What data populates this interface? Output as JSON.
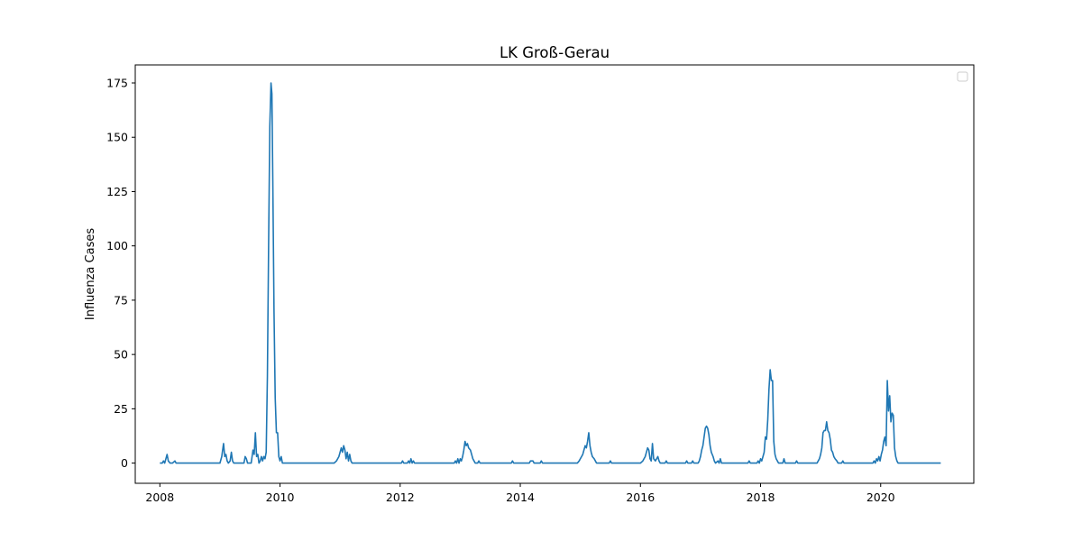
{
  "chart_data": {
    "type": "line",
    "title": "LK Groß-Gerau",
    "xlabel": "",
    "ylabel": "Influenza Cases",
    "xlim": [
      2007.59,
      2021.55
    ],
    "ylim": [
      -9.3,
      183.3
    ],
    "x_ticks": [
      2008,
      2010,
      2012,
      2014,
      2016,
      2018,
      2020
    ],
    "x_tick_labels": [
      "2008",
      "2010",
      "2012",
      "2014",
      "2016",
      "2018",
      "2020"
    ],
    "y_ticks": [
      0,
      25,
      50,
      75,
      100,
      125,
      150,
      175
    ],
    "y_tick_labels": [
      "0",
      "25",
      "50",
      "75",
      "100",
      "125",
      "150",
      "175"
    ],
    "grid": false,
    "legend": {
      "placement": "upper right",
      "entries": []
    },
    "series": [
      {
        "color": "#1f77b4",
        "points": [
          [
            2008.0,
            0
          ],
          [
            2008.04,
            0
          ],
          [
            2008.06,
            1
          ],
          [
            2008.08,
            0
          ],
          [
            2008.1,
            2
          ],
          [
            2008.12,
            4
          ],
          [
            2008.14,
            1
          ],
          [
            2008.17,
            0
          ],
          [
            2008.21,
            0
          ],
          [
            2008.25,
            1
          ],
          [
            2008.27,
            0
          ],
          [
            2009.0,
            0
          ],
          [
            2009.03,
            3
          ],
          [
            2009.06,
            9
          ],
          [
            2009.08,
            3
          ],
          [
            2009.1,
            4
          ],
          [
            2009.12,
            1
          ],
          [
            2009.14,
            0
          ],
          [
            2009.17,
            1
          ],
          [
            2009.19,
            5
          ],
          [
            2009.21,
            1
          ],
          [
            2009.23,
            0
          ],
          [
            2009.4,
            0
          ],
          [
            2009.42,
            3
          ],
          [
            2009.44,
            2
          ],
          [
            2009.46,
            0
          ],
          [
            2009.52,
            0
          ],
          [
            2009.55,
            6
          ],
          [
            2009.57,
            4
          ],
          [
            2009.59,
            14
          ],
          [
            2009.61,
            3
          ],
          [
            2009.63,
            4
          ],
          [
            2009.65,
            0
          ],
          [
            2009.67,
            1
          ],
          [
            2009.69,
            3
          ],
          [
            2009.71,
            1
          ],
          [
            2009.73,
            3
          ],
          [
            2009.75,
            2
          ],
          [
            2009.77,
            5
          ],
          [
            2009.79,
            40
          ],
          [
            2009.81,
            100
          ],
          [
            2009.83,
            155
          ],
          [
            2009.85,
            175
          ],
          [
            2009.865,
            170
          ],
          [
            2009.88,
            130
          ],
          [
            2009.9,
            70
          ],
          [
            2009.92,
            30
          ],
          [
            2009.94,
            14
          ],
          [
            2009.96,
            14
          ],
          [
            2009.98,
            3
          ],
          [
            2010.0,
            1
          ],
          [
            2010.02,
            3
          ],
          [
            2010.04,
            0
          ],
          [
            2010.9,
            0
          ],
          [
            2010.94,
            1
          ],
          [
            2010.98,
            3
          ],
          [
            2011.02,
            7
          ],
          [
            2011.04,
            5
          ],
          [
            2011.06,
            8
          ],
          [
            2011.08,
            6
          ],
          [
            2011.1,
            2
          ],
          [
            2011.12,
            5
          ],
          [
            2011.14,
            1
          ],
          [
            2011.16,
            4
          ],
          [
            2011.18,
            1
          ],
          [
            2011.2,
            0
          ],
          [
            2012.02,
            0
          ],
          [
            2012.04,
            1
          ],
          [
            2012.06,
            0
          ],
          [
            2012.12,
            0
          ],
          [
            2012.14,
            1
          ],
          [
            2012.16,
            0
          ],
          [
            2012.18,
            2
          ],
          [
            2012.2,
            0
          ],
          [
            2012.22,
            1
          ],
          [
            2012.24,
            0
          ],
          [
            2012.9,
            0
          ],
          [
            2012.92,
            1
          ],
          [
            2012.94,
            0
          ],
          [
            2012.96,
            2
          ],
          [
            2012.98,
            0
          ],
          [
            2013.0,
            2
          ],
          [
            2013.02,
            1
          ],
          [
            2013.04,
            3
          ],
          [
            2013.06,
            6
          ],
          [
            2013.08,
            10
          ],
          [
            2013.1,
            8
          ],
          [
            2013.12,
            9
          ],
          [
            2013.14,
            7
          ],
          [
            2013.17,
            6
          ],
          [
            2013.19,
            4
          ],
          [
            2013.21,
            2
          ],
          [
            2013.23,
            1
          ],
          [
            2013.25,
            0
          ],
          [
            2013.29,
            0
          ],
          [
            2013.31,
            1
          ],
          [
            2013.33,
            0
          ],
          [
            2013.85,
            0
          ],
          [
            2013.87,
            1
          ],
          [
            2013.89,
            0
          ],
          [
            2014.15,
            0
          ],
          [
            2014.17,
            1
          ],
          [
            2014.21,
            1
          ],
          [
            2014.23,
            0
          ],
          [
            2014.33,
            0
          ],
          [
            2014.35,
            1
          ],
          [
            2014.37,
            0
          ],
          [
            2014.95,
            0
          ],
          [
            2014.98,
            1
          ],
          [
            2015.0,
            2
          ],
          [
            2015.02,
            3
          ],
          [
            2015.04,
            4
          ],
          [
            2015.06,
            6
          ],
          [
            2015.08,
            8
          ],
          [
            2015.1,
            7
          ],
          [
            2015.12,
            10
          ],
          [
            2015.14,
            14
          ],
          [
            2015.16,
            8
          ],
          [
            2015.18,
            5
          ],
          [
            2015.2,
            3
          ],
          [
            2015.23,
            2
          ],
          [
            2015.25,
            1
          ],
          [
            2015.27,
            0
          ],
          [
            2015.48,
            0
          ],
          [
            2015.5,
            1
          ],
          [
            2015.52,
            0
          ],
          [
            2016.0,
            0
          ],
          [
            2016.04,
            1
          ],
          [
            2016.06,
            2
          ],
          [
            2016.08,
            3
          ],
          [
            2016.1,
            5
          ],
          [
            2016.12,
            7
          ],
          [
            2016.14,
            6
          ],
          [
            2016.16,
            2
          ],
          [
            2016.18,
            1
          ],
          [
            2016.2,
            9
          ],
          [
            2016.22,
            2
          ],
          [
            2016.25,
            1
          ],
          [
            2016.27,
            2
          ],
          [
            2016.29,
            3
          ],
          [
            2016.31,
            1
          ],
          [
            2016.33,
            0
          ],
          [
            2016.41,
            0
          ],
          [
            2016.43,
            1
          ],
          [
            2016.45,
            0
          ],
          [
            2016.75,
            0
          ],
          [
            2016.77,
            1
          ],
          [
            2016.79,
            0
          ],
          [
            2016.85,
            0
          ],
          [
            2016.87,
            1
          ],
          [
            2016.89,
            0
          ],
          [
            2016.96,
            0
          ],
          [
            2016.98,
            1
          ],
          [
            2017.0,
            3
          ],
          [
            2017.02,
            6
          ],
          [
            2017.04,
            8
          ],
          [
            2017.06,
            12
          ],
          [
            2017.08,
            16
          ],
          [
            2017.1,
            17
          ],
          [
            2017.12,
            16
          ],
          [
            2017.14,
            13
          ],
          [
            2017.16,
            8
          ],
          [
            2017.18,
            5
          ],
          [
            2017.21,
            3
          ],
          [
            2017.23,
            1
          ],
          [
            2017.25,
            0
          ],
          [
            2017.29,
            1
          ],
          [
            2017.31,
            0
          ],
          [
            2017.33,
            2
          ],
          [
            2017.35,
            0
          ],
          [
            2017.79,
            0
          ],
          [
            2017.81,
            1
          ],
          [
            2017.83,
            0
          ],
          [
            2017.94,
            0
          ],
          [
            2017.96,
            1
          ],
          [
            2017.98,
            0
          ],
          [
            2018.0,
            2
          ],
          [
            2018.02,
            1
          ],
          [
            2018.04,
            3
          ],
          [
            2018.06,
            5
          ],
          [
            2018.08,
            12
          ],
          [
            2018.1,
            11
          ],
          [
            2018.12,
            20
          ],
          [
            2018.14,
            34
          ],
          [
            2018.16,
            43
          ],
          [
            2018.18,
            38
          ],
          [
            2018.2,
            38
          ],
          [
            2018.22,
            10
          ],
          [
            2018.24,
            4
          ],
          [
            2018.26,
            2
          ],
          [
            2018.28,
            1
          ],
          [
            2018.3,
            0
          ],
          [
            2018.37,
            0
          ],
          [
            2018.39,
            2
          ],
          [
            2018.41,
            0
          ],
          [
            2018.58,
            0
          ],
          [
            2018.6,
            1
          ],
          [
            2018.62,
            0
          ],
          [
            2018.94,
            0
          ],
          [
            2018.96,
            1
          ],
          [
            2018.98,
            2
          ],
          [
            2019.0,
            4
          ],
          [
            2019.02,
            7
          ],
          [
            2019.04,
            14
          ],
          [
            2019.06,
            15
          ],
          [
            2019.08,
            15
          ],
          [
            2019.1,
            19
          ],
          [
            2019.12,
            15
          ],
          [
            2019.14,
            14
          ],
          [
            2019.16,
            11
          ],
          [
            2019.18,
            6
          ],
          [
            2019.2,
            5
          ],
          [
            2019.22,
            3
          ],
          [
            2019.24,
            2
          ],
          [
            2019.27,
            1
          ],
          [
            2019.29,
            0
          ],
          [
            2019.35,
            0
          ],
          [
            2019.37,
            1
          ],
          [
            2019.39,
            0
          ],
          [
            2019.87,
            0
          ],
          [
            2019.89,
            1
          ],
          [
            2019.91,
            0
          ],
          [
            2019.93,
            2
          ],
          [
            2019.95,
            1
          ],
          [
            2019.97,
            3
          ],
          [
            2019.99,
            1
          ],
          [
            2020.01,
            4
          ],
          [
            2020.03,
            6
          ],
          [
            2020.05,
            10
          ],
          [
            2020.07,
            12
          ],
          [
            2020.09,
            8
          ],
          [
            2020.11,
            38
          ],
          [
            2020.13,
            24
          ],
          [
            2020.15,
            31
          ],
          [
            2020.17,
            19
          ],
          [
            2020.19,
            23
          ],
          [
            2020.21,
            22
          ],
          [
            2020.23,
            7
          ],
          [
            2020.25,
            3
          ],
          [
            2020.27,
            1
          ],
          [
            2020.29,
            0
          ],
          [
            2021.0,
            0
          ]
        ]
      }
    ]
  }
}
